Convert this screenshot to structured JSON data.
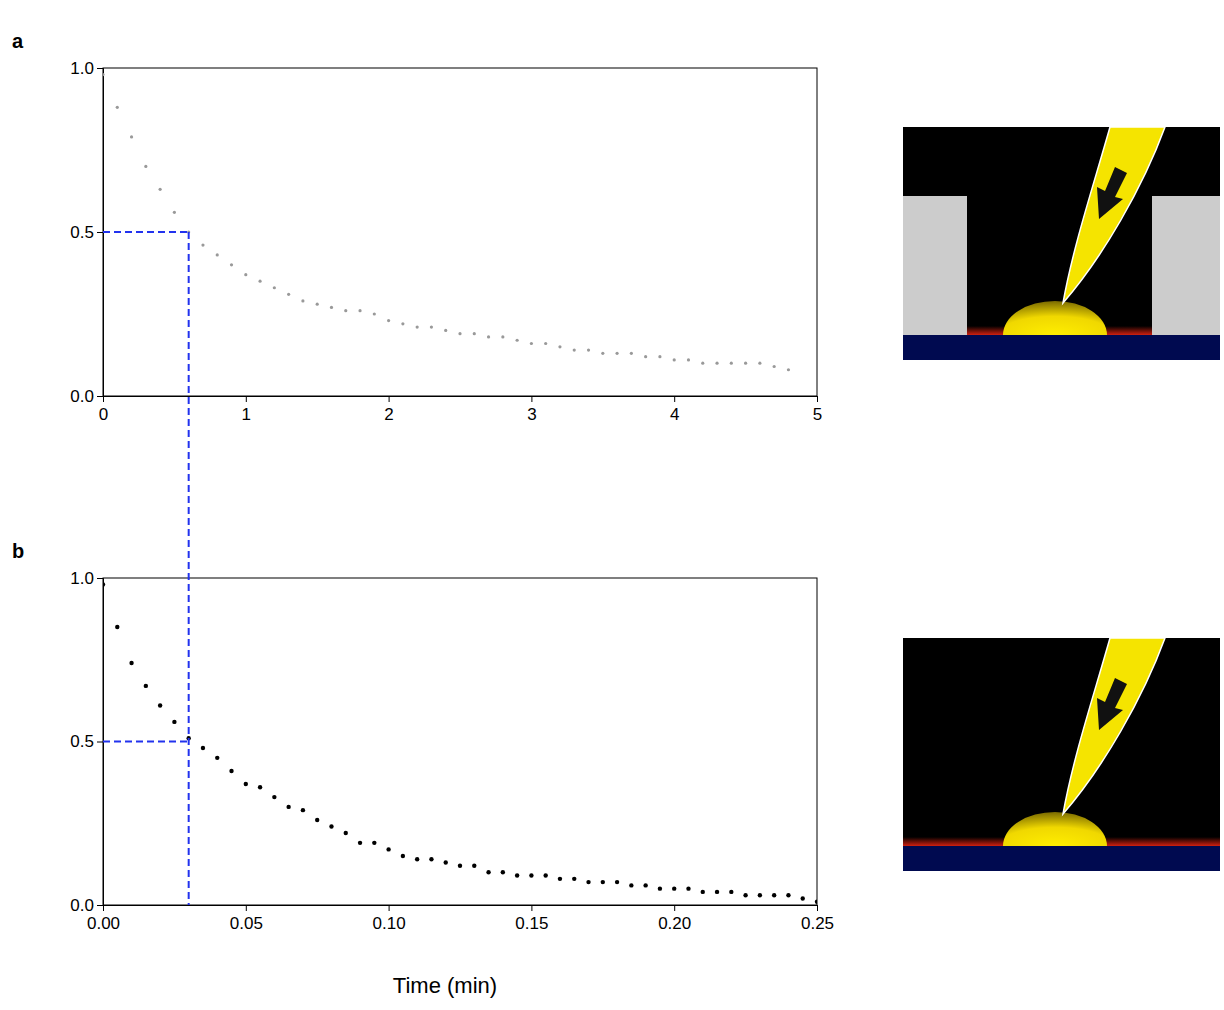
{
  "chart_data": [
    {
      "type": "scatter",
      "panel_label": "a",
      "color": "#999999",
      "marker": "dot",
      "x": [
        0,
        0.1,
        0.2,
        0.3,
        0.4,
        0.5,
        0.6,
        0.7,
        0.8,
        0.9,
        1.0,
        1.1,
        1.2,
        1.3,
        1.4,
        1.5,
        1.6,
        1.7,
        1.8,
        1.9,
        2.0,
        2.1,
        2.2,
        2.3,
        2.4,
        2.5,
        2.6,
        2.7,
        2.8,
        2.9,
        3.0,
        3.1,
        3.2,
        3.3,
        3.4,
        3.5,
        3.6,
        3.7,
        3.8,
        3.9,
        4.0,
        4.1,
        4.2,
        4.3,
        4.4,
        4.5,
        4.6,
        4.7,
        4.8
      ],
      "values": [
        0.98,
        0.88,
        0.79,
        0.7,
        0.63,
        0.56,
        0.5,
        0.46,
        0.43,
        0.4,
        0.37,
        0.35,
        0.33,
        0.31,
        0.29,
        0.28,
        0.27,
        0.26,
        0.26,
        0.25,
        0.23,
        0.22,
        0.21,
        0.21,
        0.2,
        0.19,
        0.19,
        0.18,
        0.18,
        0.17,
        0.16,
        0.16,
        0.15,
        0.14,
        0.14,
        0.13,
        0.13,
        0.13,
        0.12,
        0.12,
        0.11,
        0.11,
        0.1,
        0.1,
        0.1,
        0.1,
        0.1,
        0.09,
        0.08
      ],
      "xlim": [
        0,
        5
      ],
      "xticks": [
        0,
        1,
        2,
        3,
        4,
        5
      ],
      "ylim": [
        0,
        1
      ],
      "yticks": [
        {
          "value": 0,
          "label": "0.0"
        },
        {
          "value": 0.5,
          "label": "0.5"
        },
        {
          "value": 1,
          "label": "1.0"
        }
      ],
      "half_value": 0.5,
      "half_time": 0.6
    },
    {
      "type": "scatter",
      "panel_label": "b",
      "color": "#000000",
      "marker": "dot",
      "x_label": "Time (min)",
      "x": [
        0,
        0.005,
        0.01,
        0.015,
        0.02,
        0.025,
        0.03,
        0.035,
        0.04,
        0.045,
        0.05,
        0.055,
        0.06,
        0.065,
        0.07,
        0.075,
        0.08,
        0.085,
        0.09,
        0.095,
        0.1,
        0.105,
        0.11,
        0.115,
        0.12,
        0.125,
        0.13,
        0.135,
        0.14,
        0.145,
        0.15,
        0.155,
        0.16,
        0.165,
        0.17,
        0.175,
        0.18,
        0.185,
        0.19,
        0.195,
        0.2,
        0.205,
        0.21,
        0.215,
        0.22,
        0.225,
        0.23,
        0.235,
        0.24,
        0.245,
        0.25
      ],
      "values": [
        0.98,
        0.85,
        0.74,
        0.67,
        0.61,
        0.56,
        0.51,
        0.48,
        0.45,
        0.41,
        0.37,
        0.36,
        0.33,
        0.3,
        0.29,
        0.26,
        0.24,
        0.22,
        0.19,
        0.19,
        0.17,
        0.15,
        0.14,
        0.14,
        0.13,
        0.12,
        0.12,
        0.1,
        0.1,
        0.09,
        0.09,
        0.09,
        0.08,
        0.08,
        0.07,
        0.07,
        0.07,
        0.06,
        0.06,
        0.05,
        0.05,
        0.05,
        0.04,
        0.04,
        0.04,
        0.03,
        0.03,
        0.03,
        0.03,
        0.02,
        0.01
      ],
      "xlim": [
        0,
        0.25
      ],
      "xticks": [
        {
          "value": 0,
          "label": "0.00"
        },
        {
          "value": 0.05,
          "label": "0.05"
        },
        {
          "value": 0.1,
          "label": "0.10"
        },
        {
          "value": 0.15,
          "label": "0.15"
        },
        {
          "value": 0.2,
          "label": "0.20"
        },
        {
          "value": 0.25,
          "label": "0.25"
        }
      ],
      "ylim": [
        0,
        1
      ],
      "yticks": [
        {
          "value": 0,
          "label": "0.0"
        },
        {
          "value": 0.5,
          "label": "0.5"
        },
        {
          "value": 1,
          "label": "1.0"
        }
      ],
      "half_value": 0.5,
      "half_time": 0.03
    }
  ]
}
